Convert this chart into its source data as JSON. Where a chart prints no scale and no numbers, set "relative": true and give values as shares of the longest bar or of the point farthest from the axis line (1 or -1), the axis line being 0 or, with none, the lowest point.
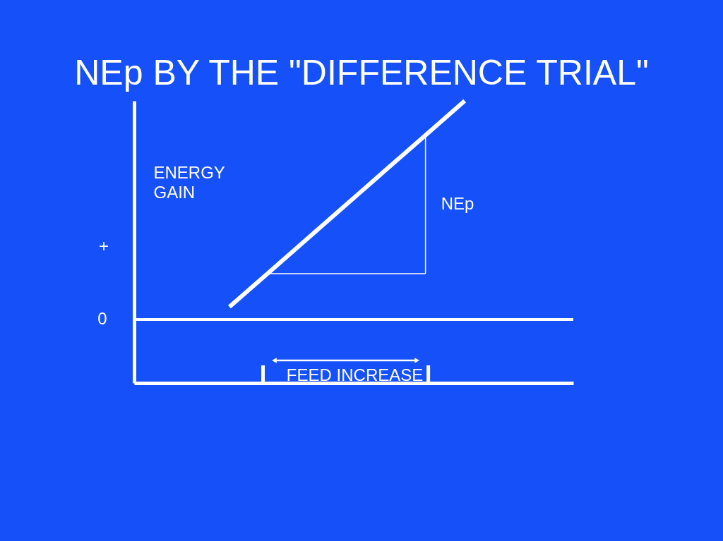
{
  "chart_data": {
    "type": "line",
    "title": "NEp BY THE \"DIFFERENCE TRIAL\"",
    "ylabel": "ENERGY GAIN",
    "relative": true,
    "categories": [
      null,
      null,
      null,
      null,
      null,
      null,
      null
    ],
    "series": [
      {
        "color": "#ffffff",
        "values": [
          0.058,
          0.215,
          0.372,
          0.529,
          0.686,
          0.843,
          1
        ]
      },
      {
        "type": "line",
        "color": "#ffffff",
        "values": [
          null,
          0.21,
          0.21,
          0.21,
          0.21,
          0.21,
          null
        ]
      }
    ],
    "ref_lines": [
      {
        "axis": "y",
        "value": 0,
        "label": "0",
        "color": "#ffffff"
      }
    ],
    "annotations": [
      "+",
      "NEp",
      "FEED INCREASE"
    ]
  }
}
